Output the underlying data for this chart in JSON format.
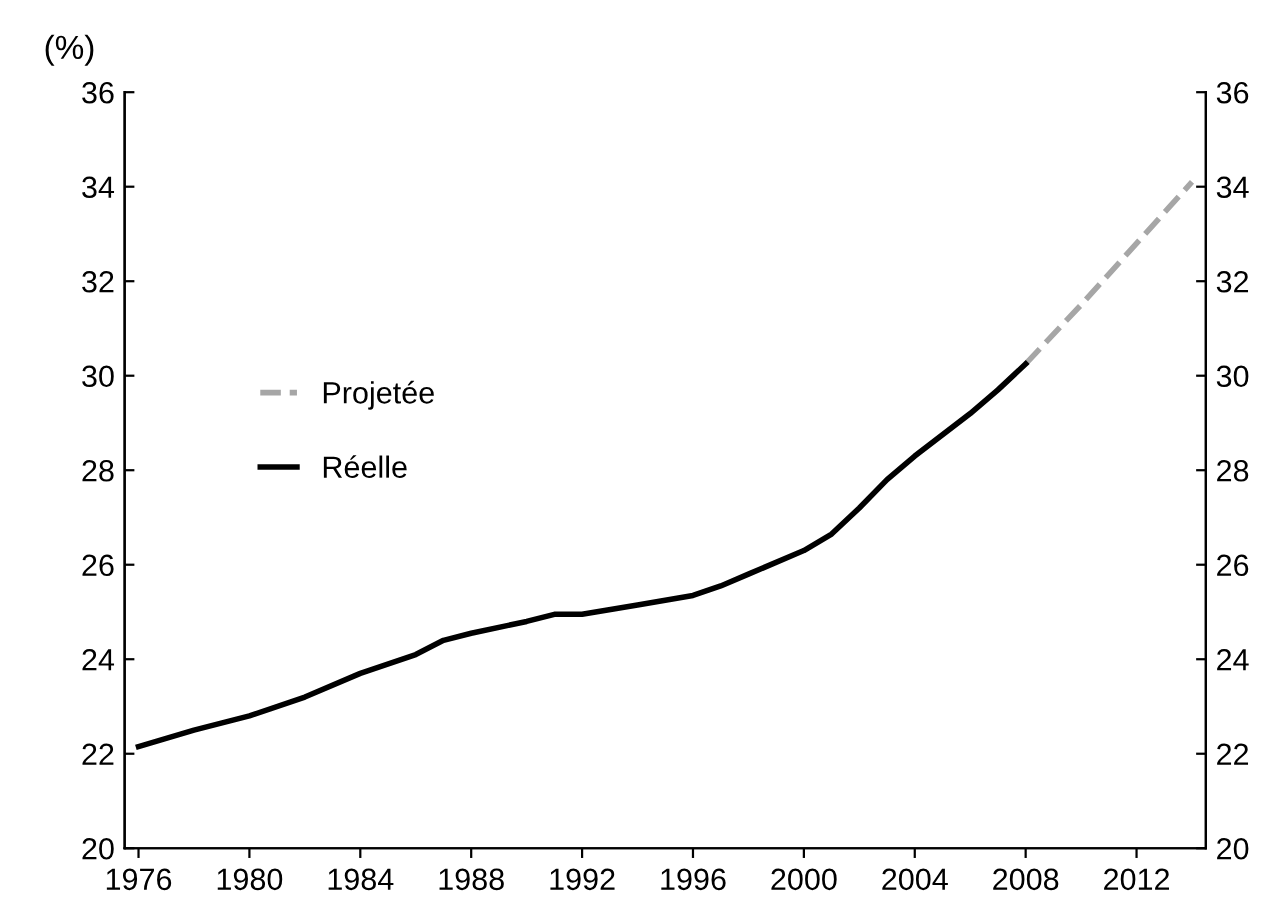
{
  "chart_data": {
    "type": "line",
    "ylabel": "(%)",
    "xlim": [
      1975.5,
      2014.5
    ],
    "xticks": [
      1976,
      1980,
      1984,
      1988,
      1992,
      1996,
      2000,
      2004,
      2008,
      2012
    ],
    "ylim": [
      20,
      36
    ],
    "yticks": [
      20,
      22,
      24,
      26,
      28,
      30,
      32,
      34,
      36
    ],
    "y2lim": [
      20,
      36
    ],
    "y2ticks": [
      20,
      22,
      24,
      26,
      28,
      30,
      32,
      34,
      36
    ],
    "series": [
      {
        "name": "Projetée",
        "color": "#a6a6a6",
        "line_style": "dashed",
        "x": [
          2008,
          2010,
          2012,
          2014
        ],
        "values": [
          30.25,
          31.5,
          32.8,
          34.1
        ]
      },
      {
        "name": "Réelle",
        "color": "#000000",
        "line_style": "solid",
        "x": [
          1976,
          1978,
          1980,
          1982,
          1984,
          1986,
          1987,
          1988,
          1990,
          1991,
          1992,
          1994,
          1996,
          1997,
          1998,
          2000,
          2001,
          2002,
          2003,
          2004,
          2006,
          2007,
          2008
        ],
        "values": [
          22.15,
          22.5,
          22.8,
          23.2,
          23.7,
          24.1,
          24.4,
          24.55,
          24.8,
          24.95,
          24.95,
          25.15,
          25.35,
          25.55,
          25.8,
          26.3,
          26.65,
          27.2,
          27.8,
          28.3,
          29.2,
          29.7,
          30.25
        ]
      }
    ],
    "legend": "center left",
    "grid": false
  }
}
